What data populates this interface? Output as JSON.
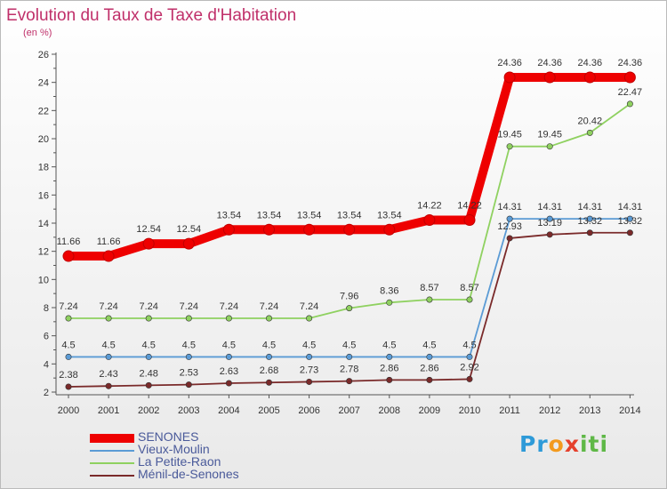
{
  "title": "Evolution du Taux de Taxe d'Habitation",
  "subtitle": "(en %)",
  "logo": {
    "parts": [
      "Pr",
      "o",
      "x",
      "iti"
    ]
  },
  "chart_data": {
    "type": "line",
    "x": [
      "2000",
      "2001",
      "2002",
      "2003",
      "2004",
      "2005",
      "2006",
      "2007",
      "2008",
      "2009",
      "2010",
      "2011",
      "2012",
      "2013",
      "2014"
    ],
    "ylim": [
      2,
      26
    ],
    "yticks": [
      2,
      4,
      6,
      8,
      10,
      12,
      14,
      16,
      18,
      20,
      22,
      24,
      26
    ],
    "grid": false,
    "legend_position": "bottom-left",
    "series": [
      {
        "name": "SENONES",
        "color": "#ee0000",
        "values": [
          11.66,
          11.66,
          12.54,
          12.54,
          13.54,
          13.54,
          13.54,
          13.54,
          13.54,
          14.22,
          14.22,
          24.36,
          24.36,
          24.36,
          24.36
        ],
        "labels": [
          "11.66",
          "11.66",
          "12.54",
          "12.54",
          "13.54",
          "13.54",
          "13.54",
          "13.54",
          "13.54",
          "14.22",
          "14.22",
          "24.36",
          "24.36",
          "24.36",
          "24.36"
        ]
      },
      {
        "name": "Vieux-Moulin",
        "color": "#5b9bd5",
        "values": [
          4.5,
          4.5,
          4.5,
          4.5,
          4.5,
          4.5,
          4.5,
          4.5,
          4.5,
          4.5,
          4.5,
          14.31,
          14.31,
          14.31,
          14.31
        ],
        "labels": [
          "4.5",
          "4.5",
          "4.5",
          "4.5",
          "4.5",
          "4.5",
          "4.5",
          "4.5",
          "4.5",
          "4.5",
          "4.5",
          "14.31",
          "14.31",
          "14.31",
          "14.31"
        ]
      },
      {
        "name": "La Petite-Raon",
        "color": "#8fd160",
        "values": [
          7.24,
          7.24,
          7.24,
          7.24,
          7.24,
          7.24,
          7.24,
          7.96,
          8.36,
          8.57,
          8.57,
          19.45,
          19.45,
          20.42,
          22.47
        ],
        "labels": [
          "7.24",
          "7.24",
          "7.24",
          "7.24",
          "7.24",
          "7.24",
          "7.24",
          "7.96",
          "8.36",
          "8.57",
          "8.57",
          "19.45",
          "19.45",
          "20.42",
          "22.47"
        ]
      },
      {
        "name": "Ménil-de-Senones",
        "color": "#7a2a2a",
        "values": [
          2.38,
          2.43,
          2.48,
          2.53,
          2.63,
          2.68,
          2.73,
          2.78,
          2.86,
          2.86,
          2.92,
          12.93,
          13.19,
          13.32,
          13.32
        ],
        "labels": [
          "2.38",
          "2.43",
          "2.48",
          "2.53",
          "2.63",
          "2.68",
          "2.73",
          "2.78",
          "2.86",
          "2.86",
          "2.92",
          "12.93",
          "13.19",
          "13.32",
          "13.32"
        ]
      }
    ]
  }
}
